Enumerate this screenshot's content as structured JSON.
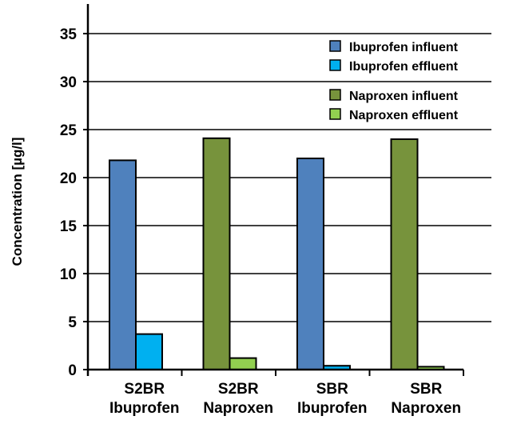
{
  "chart_data": {
    "type": "bar",
    "title": "",
    "xlabel": "",
    "ylabel": "Concentration [µg/l]",
    "ylim": [
      0,
      35
    ],
    "yticks": [
      "0",
      "5",
      "10",
      "15",
      "20",
      "25",
      "30",
      "35"
    ],
    "grid": true,
    "legend_position": "top-right",
    "categories": [
      [
        "S2BR",
        "Ibuprofen"
      ],
      [
        "S2BR",
        "Naproxen"
      ],
      [
        "SBR",
        "Ibuprofen"
      ],
      [
        "SBR",
        "Naproxen"
      ]
    ],
    "series": [
      {
        "name": "Ibuprofen influent",
        "color": "#4f81bd",
        "values": [
          21.8,
          null,
          22.0,
          null
        ]
      },
      {
        "name": "Ibuprofen effluent",
        "color": "#00b0f0",
        "values": [
          3.7,
          null,
          0.4,
          null
        ]
      },
      {
        "name": "Naproxen influent",
        "color": "#77933c",
        "values": [
          null,
          24.1,
          null,
          24.0
        ]
      },
      {
        "name": "Naproxen effluent",
        "color": "#92d050",
        "values": [
          null,
          1.2,
          null,
          0.3
        ]
      }
    ]
  }
}
